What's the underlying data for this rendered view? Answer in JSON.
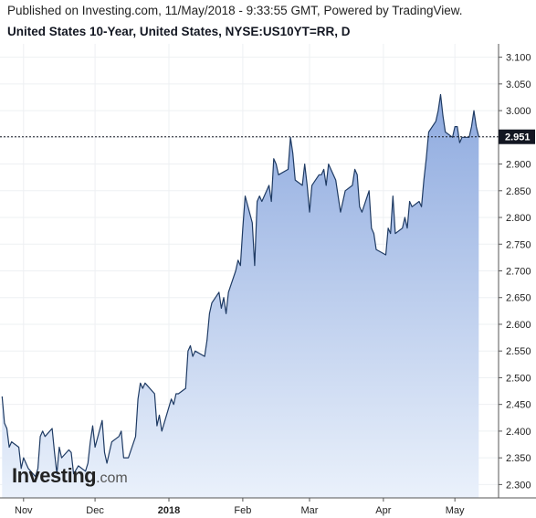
{
  "header": {
    "published": "Published on Investing.com, 11/May/2018 - 9:33:55 GMT, Powered by TradingView.",
    "subtitle": "United States 10-Year, United States, NYSE:US10YT=RR, D"
  },
  "logo": {
    "brand": "Investing",
    "suffix": ".com"
  },
  "colors": {
    "line": "#1f3b64",
    "area_top": "#8eaadf",
    "area_bottom": "#eaf1fb",
    "grid": "#eef0f3",
    "last_price_bg": "#131722",
    "last_price_text": "#ffffff"
  },
  "chart_data": {
    "type": "area",
    "title": "United States 10-Year, United States, NYSE:US10YT=RR, D",
    "xlabel": "",
    "ylabel": "",
    "x_ticks": [
      {
        "label": "Nov",
        "date": "2017-11-01",
        "bold": false
      },
      {
        "label": "Dec",
        "date": "2017-12-01",
        "bold": false
      },
      {
        "label": "2018",
        "date": "2018-01-01",
        "bold": true
      },
      {
        "label": "Feb",
        "date": "2018-02-01",
        "bold": false
      },
      {
        "label": "Mar",
        "date": "2018-03-01",
        "bold": false
      },
      {
        "label": "Apr",
        "date": "2018-04-01",
        "bold": false
      },
      {
        "label": "May",
        "date": "2018-05-01",
        "bold": false
      }
    ],
    "y_ticks": [
      "2.300",
      "2.350",
      "2.400",
      "2.450",
      "2.500",
      "2.550",
      "2.600",
      "2.650",
      "2.700",
      "2.750",
      "2.800",
      "2.850",
      "2.900",
      "2.950",
      "3.000",
      "3.050",
      "3.100"
    ],
    "ylim": [
      2.275,
      3.125
    ],
    "grid": true,
    "last_price": "2.951",
    "last_price_value": 2.951,
    "series": [
      {
        "points": [
          [
            "2017-10-23",
            2.465
          ],
          [
            "2017-10-24",
            2.415
          ],
          [
            "2017-10-25",
            2.405
          ],
          [
            "2017-10-26",
            2.37
          ],
          [
            "2017-10-27",
            2.38
          ],
          [
            "2017-10-30",
            2.37
          ],
          [
            "2017-10-31",
            2.33
          ],
          [
            "2017-11-01",
            2.35
          ],
          [
            "2017-11-02",
            2.34
          ],
          [
            "2017-11-03",
            2.33
          ],
          [
            "2017-11-06",
            2.315
          ],
          [
            "2017-11-07",
            2.33
          ],
          [
            "2017-11-08",
            2.39
          ],
          [
            "2017-11-09",
            2.4
          ],
          [
            "2017-11-10",
            2.39
          ],
          [
            "2017-11-13",
            2.405
          ],
          [
            "2017-11-14",
            2.36
          ],
          [
            "2017-11-15",
            2.32
          ],
          [
            "2017-11-16",
            2.37
          ],
          [
            "2017-11-17",
            2.35
          ],
          [
            "2017-11-20",
            2.365
          ],
          [
            "2017-11-21",
            2.36
          ],
          [
            "2017-11-22",
            2.32
          ],
          [
            "2017-11-24",
            2.335
          ],
          [
            "2017-11-27",
            2.325
          ],
          [
            "2017-11-28",
            2.34
          ],
          [
            "2017-11-29",
            2.38
          ],
          [
            "2017-11-30",
            2.41
          ],
          [
            "2017-12-01",
            2.37
          ],
          [
            "2017-12-04",
            2.42
          ],
          [
            "2017-12-05",
            2.36
          ],
          [
            "2017-12-06",
            2.34
          ],
          [
            "2017-12-07",
            2.36
          ],
          [
            "2017-12-08",
            2.38
          ],
          [
            "2017-12-11",
            2.39
          ],
          [
            "2017-12-12",
            2.4
          ],
          [
            "2017-12-13",
            2.35
          ],
          [
            "2017-12-14",
            2.35
          ],
          [
            "2017-12-15",
            2.35
          ],
          [
            "2017-12-18",
            2.39
          ],
          [
            "2017-12-19",
            2.46
          ],
          [
            "2017-12-20",
            2.49
          ],
          [
            "2017-12-21",
            2.48
          ],
          [
            "2017-12-22",
            2.49
          ],
          [
            "2017-12-26",
            2.47
          ],
          [
            "2017-12-27",
            2.41
          ],
          [
            "2017-12-28",
            2.43
          ],
          [
            "2017-12-29",
            2.4
          ],
          [
            "2018-01-02",
            2.46
          ],
          [
            "2018-01-03",
            2.45
          ],
          [
            "2018-01-04",
            2.47
          ],
          [
            "2018-01-05",
            2.47
          ],
          [
            "2018-01-08",
            2.48
          ],
          [
            "2018-01-09",
            2.55
          ],
          [
            "2018-01-10",
            2.56
          ],
          [
            "2018-01-11",
            2.54
          ],
          [
            "2018-01-12",
            2.55
          ],
          [
            "2018-01-16",
            2.54
          ],
          [
            "2018-01-17",
            2.57
          ],
          [
            "2018-01-18",
            2.62
          ],
          [
            "2018-01-19",
            2.64
          ],
          [
            "2018-01-22",
            2.66
          ],
          [
            "2018-01-23",
            2.63
          ],
          [
            "2018-01-24",
            2.65
          ],
          [
            "2018-01-25",
            2.62
          ],
          [
            "2018-01-26",
            2.66
          ],
          [
            "2018-01-29",
            2.7
          ],
          [
            "2018-01-30",
            2.72
          ],
          [
            "2018-01-31",
            2.71
          ],
          [
            "2018-02-01",
            2.78
          ],
          [
            "2018-02-02",
            2.84
          ],
          [
            "2018-02-05",
            2.79
          ],
          [
            "2018-02-06",
            2.71
          ],
          [
            "2018-02-07",
            2.83
          ],
          [
            "2018-02-08",
            2.84
          ],
          [
            "2018-02-09",
            2.83
          ],
          [
            "2018-02-12",
            2.86
          ],
          [
            "2018-02-13",
            2.83
          ],
          [
            "2018-02-14",
            2.91
          ],
          [
            "2018-02-15",
            2.9
          ],
          [
            "2018-02-16",
            2.88
          ],
          [
            "2018-02-20",
            2.89
          ],
          [
            "2018-02-21",
            2.95
          ],
          [
            "2018-02-22",
            2.92
          ],
          [
            "2018-02-23",
            2.87
          ],
          [
            "2018-02-26",
            2.86
          ],
          [
            "2018-02-27",
            2.9
          ],
          [
            "2018-02-28",
            2.86
          ],
          [
            "2018-03-01",
            2.81
          ],
          [
            "2018-03-02",
            2.86
          ],
          [
            "2018-03-05",
            2.88
          ],
          [
            "2018-03-06",
            2.88
          ],
          [
            "2018-03-07",
            2.89
          ],
          [
            "2018-03-08",
            2.86
          ],
          [
            "2018-03-09",
            2.9
          ],
          [
            "2018-03-12",
            2.87
          ],
          [
            "2018-03-13",
            2.84
          ],
          [
            "2018-03-14",
            2.81
          ],
          [
            "2018-03-15",
            2.83
          ],
          [
            "2018-03-16",
            2.85
          ],
          [
            "2018-03-19",
            2.86
          ],
          [
            "2018-03-20",
            2.89
          ],
          [
            "2018-03-21",
            2.88
          ],
          [
            "2018-03-22",
            2.82
          ],
          [
            "2018-03-23",
            2.81
          ],
          [
            "2018-03-26",
            2.85
          ],
          [
            "2018-03-27",
            2.78
          ],
          [
            "2018-03-28",
            2.77
          ],
          [
            "2018-03-29",
            2.74
          ],
          [
            "2018-04-02",
            2.73
          ],
          [
            "2018-04-03",
            2.78
          ],
          [
            "2018-04-04",
            2.77
          ],
          [
            "2018-04-05",
            2.84
          ],
          [
            "2018-04-06",
            2.77
          ],
          [
            "2018-04-09",
            2.78
          ],
          [
            "2018-04-10",
            2.8
          ],
          [
            "2018-04-11",
            2.78
          ],
          [
            "2018-04-12",
            2.83
          ],
          [
            "2018-04-13",
            2.82
          ],
          [
            "2018-04-16",
            2.83
          ],
          [
            "2018-04-17",
            2.82
          ],
          [
            "2018-04-18",
            2.87
          ],
          [
            "2018-04-19",
            2.91
          ],
          [
            "2018-04-20",
            2.96
          ],
          [
            "2018-04-23",
            2.98
          ],
          [
            "2018-04-24",
            3.0
          ],
          [
            "2018-04-25",
            3.03
          ],
          [
            "2018-04-26",
            2.99
          ],
          [
            "2018-04-27",
            2.96
          ],
          [
            "2018-04-30",
            2.95
          ],
          [
            "2018-05-01",
            2.97
          ],
          [
            "2018-05-02",
            2.97
          ],
          [
            "2018-05-03",
            2.94
          ],
          [
            "2018-05-04",
            2.95
          ],
          [
            "2018-05-07",
            2.95
          ],
          [
            "2018-05-08",
            2.97
          ],
          [
            "2018-05-09",
            3.0
          ],
          [
            "2018-05-10",
            2.97
          ],
          [
            "2018-05-11",
            2.951
          ]
        ]
      }
    ]
  }
}
